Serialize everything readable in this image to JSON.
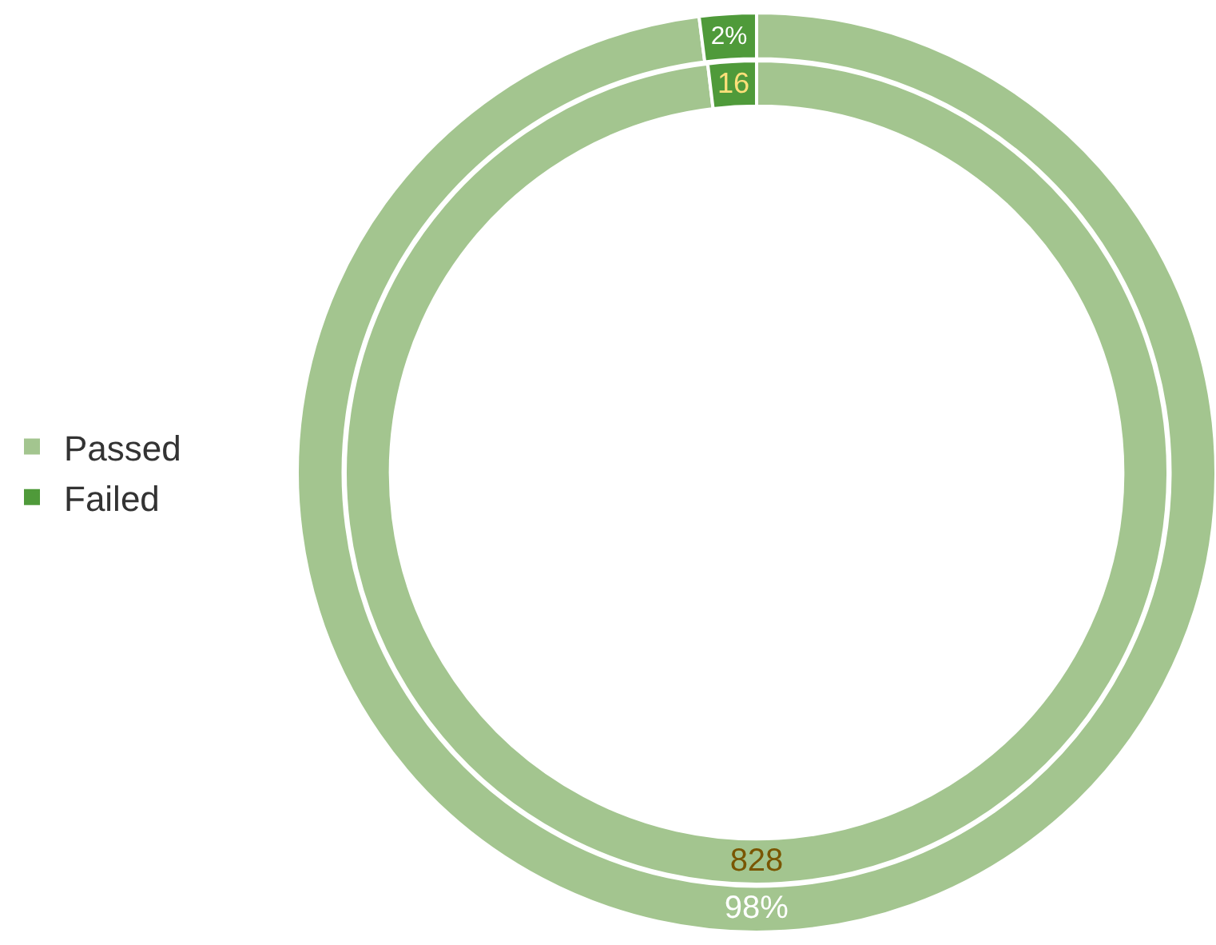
{
  "chart_data": [
    {
      "type": "donut",
      "categories": [
        "Passed",
        "Failed"
      ],
      "colors": [
        "#a3c58f",
        "#4f9a3a"
      ],
      "legend": "left",
      "values": [
        98,
        2
      ],
      "value_labels": [
        "98%",
        "2%"
      ]
    },
    {
      "type": "donut",
      "categories": [
        null,
        null
      ],
      "colors": [
        "#a3c58f",
        "#4f9a3a"
      ],
      "values": [
        828,
        16
      ],
      "value_labels": [
        "828",
        "16"
      ]
    }
  ]
}
